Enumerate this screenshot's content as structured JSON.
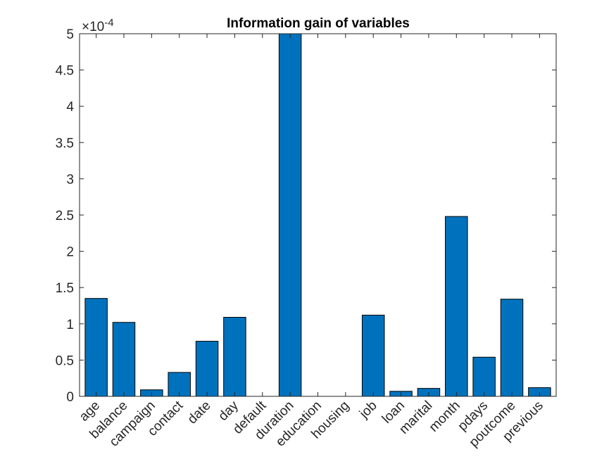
{
  "chart_data": {
    "type": "bar",
    "title": "Information gain of variables",
    "xlabel": "",
    "ylabel": "",
    "exponent_base": "×10",
    "exponent": "-4",
    "categories": [
      "age",
      "balance",
      "campaign",
      "contact",
      "date",
      "day",
      "default",
      "duration",
      "education",
      "housing",
      "job",
      "loan",
      "marital",
      "month",
      "pdays",
      "poutcome",
      "previous"
    ],
    "values": [
      1.35,
      1.02,
      0.09,
      0.33,
      0.76,
      1.09,
      0.0,
      5.0,
      0.0,
      0.0,
      1.12,
      0.07,
      0.11,
      2.48,
      0.54,
      1.34,
      0.12
    ],
    "ylim": [
      0,
      5
    ],
    "yticks": [
      0,
      0.5,
      1,
      1.5,
      2,
      2.5,
      3,
      3.5,
      4,
      4.5,
      5
    ],
    "ytick_labels": [
      "0",
      "0.5",
      "1",
      "1.5",
      "2",
      "2.5",
      "3",
      "3.5",
      "4",
      "4.5",
      "5"
    ],
    "grid": false,
    "bar_color": "#0072bd",
    "bar_edge_color": "#000000"
  }
}
